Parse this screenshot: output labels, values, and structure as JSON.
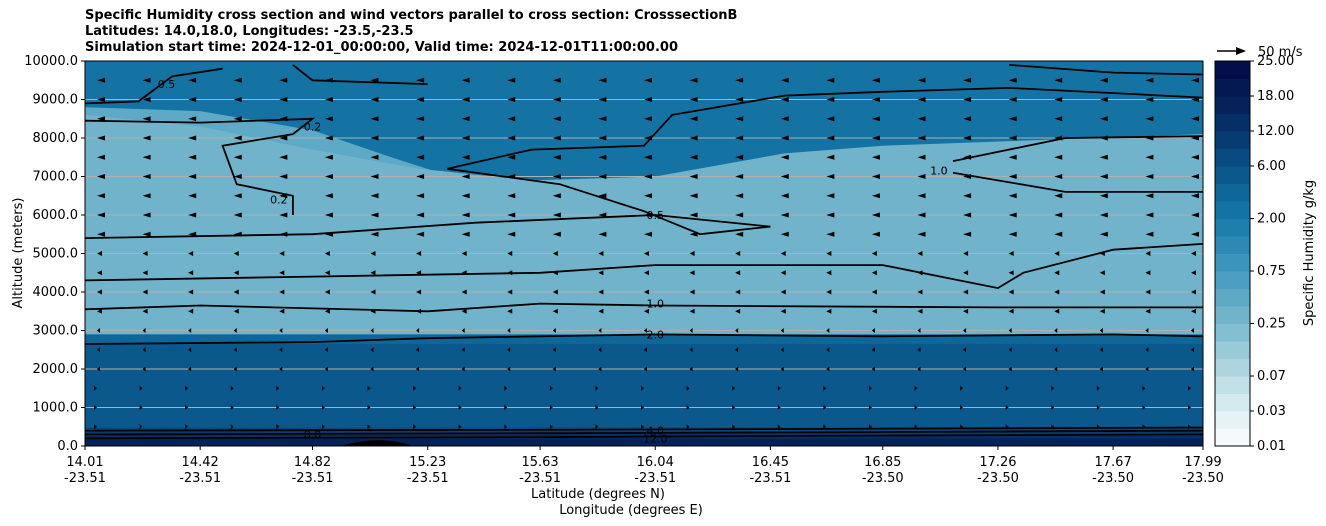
{
  "chart_data": {
    "type": "contour",
    "title": [
      "Specific Humidity cross section and wind vectors parallel to cross section: CrosssectionB",
      "Latitudes: 14.0,18.0, Longitudes: -23.5,-23.5",
      "Simulation start time: 2024-12-01_00:00:00, Valid time: 2024-12-01T11:00:00.00"
    ],
    "xlabel": "Latitude (degrees N)",
    "xlabel2": "Longitude (degrees E)",
    "ylabel": "Altitude (meters)",
    "ylim": [
      0,
      10000
    ],
    "y_ticks": [
      "0.0",
      "1000.0",
      "2000.0",
      "3000.0",
      "4000.0",
      "5000.0",
      "6000.0",
      "7000.0",
      "8000.0",
      "9000.0",
      "10000.0"
    ],
    "x_ticks_lat": [
      "14.01",
      "14.42",
      "14.82",
      "15.23",
      "15.63",
      "16.04",
      "16.45",
      "16.85",
      "17.26",
      "17.67",
      "17.99"
    ],
    "x_ticks_lon": [
      "-23.51",
      "-23.51",
      "-23.51",
      "-23.51",
      "-23.51",
      "-23.51",
      "-23.51",
      "-23.50",
      "-23.50",
      "-23.50",
      "-23.50"
    ],
    "grid": "horizontal",
    "colorbar": {
      "label": "Specific Humidity g/kg",
      "levels": [
        0.01,
        0.02,
        0.03,
        0.05,
        0.07,
        0.1,
        0.15,
        0.25,
        0.35,
        0.5,
        0.75,
        1.0,
        1.5,
        2.0,
        3.0,
        4.0,
        6.0,
        8.0,
        12.0,
        15.0,
        18.0,
        21.0,
        25.0
      ],
      "tick_labels": [
        "0.01",
        "0.03",
        "0.07",
        "0.25",
        "0.75",
        "2.00",
        "6.00",
        "12.00",
        "18.00",
        "25.00"
      ],
      "colors": [
        "#f4fafb",
        "#e6f2f5",
        "#d5eaef",
        "#c2e0e8",
        "#aed5df",
        "#99cad8",
        "#84bfd1",
        "#70b3cb",
        "#5ea9c6",
        "#4c9fc1",
        "#3b94bb",
        "#2b89b4",
        "#1e7fac",
        "#1473a3",
        "#0e6699",
        "#0b588d",
        "#094a80",
        "#073c73",
        "#062f67",
        "#05235b",
        "#041852",
        "#030f49"
      ]
    },
    "contour_labels": [
      {
        "text": "0.5",
        "x_lat": 16.04,
        "y": 6000
      },
      {
        "text": "1.0",
        "x_lat": 16.04,
        "y": 3700
      },
      {
        "text": "2.0",
        "x_lat": 16.04,
        "y": 2900
      },
      {
        "text": "0.2",
        "x_lat": 14.82,
        "y": 8300
      },
      {
        "text": "0.2",
        "x_lat": 14.7,
        "y": 6400
      },
      {
        "text": "1.0",
        "x_lat": 17.05,
        "y": 7150
      },
      {
        "text": "0.5",
        "x_lat": 14.3,
        "y": 9400
      },
      {
        "text": "4.0",
        "x_lat": 16.04,
        "y": 400
      },
      {
        "text": "12.0",
        "x_lat": 16.04,
        "y": 200
      },
      {
        "text": "8.0",
        "x_lat": 14.82,
        "y": 300
      }
    ],
    "quiver_key": {
      "label": "50 m/s"
    }
  }
}
